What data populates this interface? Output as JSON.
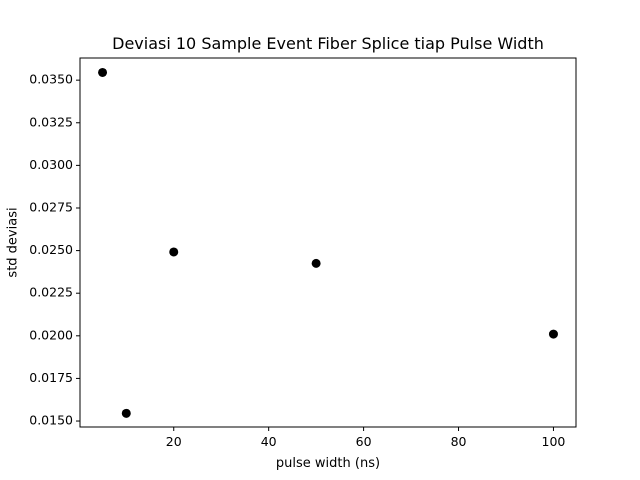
{
  "chart_data": {
    "type": "scatter",
    "title": "Deviasi 10 Sample Event Fiber Splice tiap Pulse Width",
    "xlabel": "pulse width (ns)",
    "ylabel": "std deviasi",
    "xlim": [
      0.25,
      104.75
    ],
    "ylim": [
      0.01465,
      0.0363
    ],
    "xticks": [
      20,
      40,
      60,
      80,
      100
    ],
    "xtick_labels": [
      "20",
      "40",
      "60",
      "80",
      "100"
    ],
    "yticks": [
      0.015,
      0.0175,
      0.02,
      0.0225,
      0.025,
      0.0275,
      0.03,
      0.0325,
      0.035
    ],
    "ytick_labels": [
      "0.0150",
      "0.0175",
      "0.0200",
      "0.0225",
      "0.0250",
      "0.0275",
      "0.0300",
      "0.0325",
      "0.0350"
    ],
    "grid": false,
    "marker_color": "#000000",
    "points": [
      {
        "x": 5,
        "y": 0.03545
      },
      {
        "x": 10,
        "y": 0.01545
      },
      {
        "x": 20,
        "y": 0.02492
      },
      {
        "x": 50,
        "y": 0.02425
      },
      {
        "x": 100,
        "y": 0.0201
      }
    ]
  }
}
